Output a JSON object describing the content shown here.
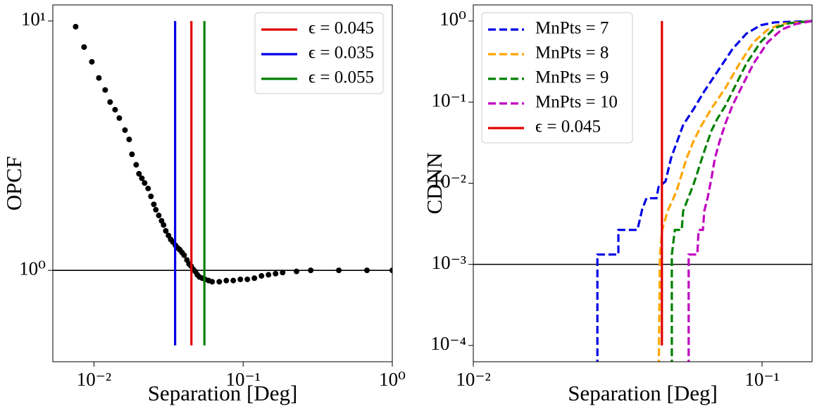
{
  "chart_data": [
    {
      "type": "scatter",
      "xlabel": "Separation [Deg]",
      "ylabel": "OPCF",
      "xscale": "log",
      "yscale": "log",
      "xlim": [
        0.0053,
        1
      ],
      "ylim": [
        0.43,
        11.6
      ],
      "xticks": [
        {
          "value": 0.01,
          "label": "10⁻²"
        },
        {
          "value": 0.1,
          "label": "10⁻¹"
        },
        {
          "value": 1,
          "label": "10⁰"
        }
      ],
      "yticks": [
        {
          "value": 1,
          "label": "10⁰"
        },
        {
          "value": 10,
          "label": "10¹"
        }
      ],
      "color": "#000000",
      "x": [
        0.00754,
        0.00859,
        0.00968,
        0.01079,
        0.01189,
        0.01283,
        0.01386,
        0.01479,
        0.01614,
        0.01722,
        0.01798,
        0.01919,
        0.02004,
        0.02094,
        0.02186,
        0.02307,
        0.0241,
        0.0252,
        0.026,
        0.0272,
        0.0284,
        0.0293,
        0.0303,
        0.0316,
        0.0327,
        0.0338,
        0.0352,
        0.0364,
        0.0376,
        0.0389,
        0.0402,
        0.042,
        0.0434,
        0.0448,
        0.0462,
        0.0478,
        0.0493,
        0.051,
        0.0533,
        0.0556,
        0.0587,
        0.062,
        0.0692,
        0.0771,
        0.0859,
        0.0958,
        0.1067,
        0.119,
        0.1327,
        0.148,
        0.165,
        0.184,
        0.228,
        0.284,
        0.438,
        0.676,
        1.0
      ],
      "values": [
        9.49,
        7.86,
        6.86,
        5.91,
        5.29,
        4.73,
        4.41,
        4.08,
        3.65,
        3.35,
        2.92,
        2.65,
        2.44,
        2.34,
        2.24,
        2.13,
        1.98,
        1.84,
        1.75,
        1.66,
        1.58,
        1.52,
        1.44,
        1.38,
        1.33,
        1.3,
        1.26,
        1.23,
        1.21,
        1.18,
        1.15,
        1.1,
        1.06,
        1.04,
        1.01,
        0.99,
        0.96,
        0.94,
        0.93,
        0.92,
        0.91,
        0.9,
        0.9,
        0.91,
        0.91,
        0.92,
        0.92,
        0.93,
        0.95,
        0.96,
        0.97,
        0.98,
        0.99,
        1.0,
        1.0,
        1.0,
        1.0
      ],
      "hline": 1,
      "vlines": [
        {
          "name": "ϵ = 0.045",
          "x": 0.045,
          "color": "#e00000",
          "span": [
            0.5,
            10
          ]
        },
        {
          "name": "ϵ = 0.035",
          "x": 0.035,
          "color": "#0000e6",
          "span": [
            0.5,
            10
          ]
        },
        {
          "name": "ϵ = 0.055",
          "x": 0.055,
          "color": "#008000",
          "span": [
            0.5,
            10
          ]
        }
      ],
      "legend": "upper right"
    },
    {
      "type": "line",
      "xlabel": "Separation [Deg]",
      "ylabel": "CDNN",
      "xscale": "log",
      "yscale": "log",
      "xlim": [
        0.01,
        0.149
      ],
      "ylim": [
        6.3e-05,
        1.58
      ],
      "xticks": [
        {
          "value": 0.01,
          "label": "10⁻²"
        },
        {
          "value": 0.1,
          "label": "10⁻¹"
        }
      ],
      "yticks": [
        {
          "value": 0.0001,
          "label": "10⁻⁴"
        },
        {
          "value": 0.001,
          "label": "10⁻³"
        },
        {
          "value": 0.01,
          "label": "10⁻²"
        },
        {
          "value": 0.1,
          "label": "10⁻¹"
        },
        {
          "value": 1,
          "label": "10⁰"
        }
      ],
      "hline": 0.001,
      "series": [
        {
          "name": "MnPts = 7",
          "color": "#0000e6",
          "x": [
            0.0269,
            0.0269,
            0.0318,
            0.0318,
            0.037,
            0.0385,
            0.0398,
            0.0431,
            0.0438,
            0.0463,
            0.0484,
            0.0509,
            0.0533,
            0.058,
            0.0631,
            0.0706,
            0.079,
            0.0883,
            0.0989,
            0.1106,
            0.149
          ],
          "values": [
            0,
            0.00132,
            0.00132,
            0.00266,
            0.00266,
            0.00484,
            0.00653,
            0.00653,
            0.009,
            0.0105,
            0.0204,
            0.0335,
            0.0523,
            0.0827,
            0.136,
            0.248,
            0.451,
            0.7,
            0.889,
            0.962,
            1.0
          ]
        },
        {
          "name": "MnPts = 8",
          "color": "#ffa500",
          "x": [
            0.0438,
            0.0443,
            0.0451,
            0.0471,
            0.049,
            0.0509,
            0.0527,
            0.0548,
            0.058,
            0.0614,
            0.0667,
            0.0747,
            0.0836,
            0.0935,
            0.1047,
            0.117,
            0.149
          ],
          "values": [
            0,
            0.0013,
            0.00266,
            0.00457,
            0.00615,
            0.00866,
            0.0129,
            0.0204,
            0.0335,
            0.05,
            0.0827,
            0.15,
            0.3,
            0.55,
            0.787,
            0.922,
            1.0
          ]
        },
        {
          "name": "MnPts = 9",
          "color": "#008000",
          "x": [
            0.0487,
            0.0487,
            0.0499,
            0.0527,
            0.0533,
            0.0557,
            0.058,
            0.0603,
            0.0631,
            0.0667,
            0.0698,
            0.0747,
            0.0813,
            0.0883,
            0.0989,
            0.1106,
            0.124,
            0.149
          ],
          "values": [
            0,
            0.00132,
            0.00266,
            0.00266,
            0.00457,
            0.0068,
            0.00986,
            0.0151,
            0.0249,
            0.044,
            0.0613,
            0.091,
            0.166,
            0.3,
            0.55,
            0.82,
            0.94,
            1.0
          ]
        },
        {
          "name": "MnPts = 10",
          "color": "#c000c0",
          "x": [
            0.0557,
            0.0557,
            0.0597,
            0.0603,
            0.0624,
            0.0631,
            0.0649,
            0.0667,
            0.0687,
            0.0714,
            0.0747,
            0.079,
            0.0859,
            0.0935,
            0.1047,
            0.117,
            0.131,
            0.149
          ],
          "values": [
            0,
            0.00132,
            0.00132,
            0.00266,
            0.00266,
            0.00457,
            0.0068,
            0.0112,
            0.0204,
            0.0335,
            0.055,
            0.091,
            0.166,
            0.3,
            0.55,
            0.787,
            0.922,
            1.0
          ]
        }
      ],
      "vlines": [
        {
          "name": "ϵ = 0.045",
          "x": 0.045,
          "color": "#e00000",
          "span": [
            0.0001,
            1
          ]
        }
      ],
      "legend": "upper left"
    }
  ]
}
